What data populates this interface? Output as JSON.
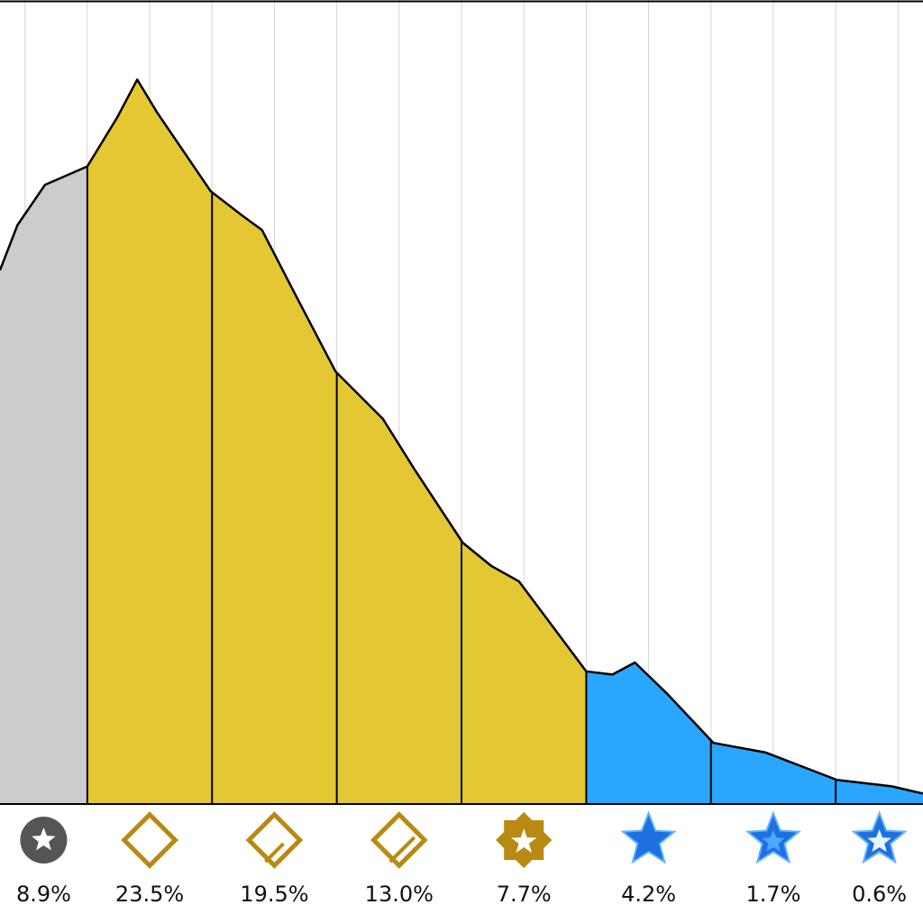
{
  "chart_data": {
    "type": "banded-area",
    "x": [
      0.3,
      0.44,
      0.66,
      1.0,
      1.24,
      1.4,
      1.56,
      1.99,
      2.25,
      2.4,
      2.68,
      2.99,
      3.37,
      3.62,
      4.01,
      4.24,
      4.46,
      5.0,
      5.21,
      5.39,
      5.65,
      6.02,
      6.44,
      7.01,
      7.45,
      7.7
    ],
    "values": [
      66.4,
      72.0,
      77.0,
      79.3,
      85.4,
      90.1,
      86.0,
      76.2,
      73.1,
      71.4,
      63.0,
      53.8,
      47.9,
      41.7,
      32.5,
      29.6,
      27.7,
      16.5,
      16.1,
      17.6,
      13.7,
      7.6,
      6.4,
      3.0,
      2.2,
      1.3
    ],
    "bands": {
      "edges": [
        0.3,
        1,
        2,
        3,
        4,
        5,
        6,
        7,
        7.7
      ],
      "values": [
        8.9,
        23.5,
        19.5,
        13.0,
        7.7,
        4.2,
        1.7,
        0.6
      ],
      "value_labels": [
        "8.9%",
        "23.5%",
        "19.5%",
        "13.0%",
        "7.7%",
        "4.2%",
        "1.7%",
        "0.6%"
      ],
      "colors": [
        "#cccccc",
        "#e3c834",
        "#e3c834",
        "#e3c834",
        "#e3c834",
        "#2aa6ff",
        "#2aa6ff",
        "#2aa6ff"
      ]
    },
    "xlim": [
      0.3,
      7.7
    ],
    "ylim": [
      0,
      100
    ],
    "xticks": [
      0.5,
      1,
      1.5,
      2,
      2.5,
      3,
      3.5,
      4,
      4.5,
      5,
      5.5,
      6,
      6.5,
      7,
      7.5
    ],
    "grid": true
  }
}
